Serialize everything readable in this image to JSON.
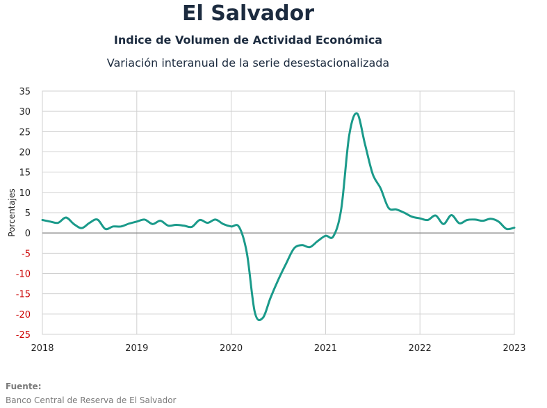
{
  "header": {
    "title": "El Salvador",
    "subtitle": "Indice de Volumen de  Actividad Económica",
    "subtitle2": "Variación interanual de la serie desestacionalizada"
  },
  "source": {
    "label": "Fuente:",
    "text": "Banco Central de Reserva de El Salvador"
  },
  "chart_data": {
    "type": "line",
    "ylabel": "Porcentajes",
    "xlabel": "",
    "xlim": [
      2018.0,
      2023.0
    ],
    "ylim": [
      -25,
      35
    ],
    "yticks": [
      35,
      30,
      25,
      20,
      15,
      10,
      5,
      0,
      -5,
      -10,
      -15,
      -20,
      -25
    ],
    "xticks": [
      "2018",
      "2019",
      "2020",
      "2021",
      "2022",
      "2023"
    ],
    "grid": true,
    "negative_tick_color": "#cc0000",
    "series": [
      {
        "color": "#1a9a8a",
        "x": [
          "2018-01",
          "2018-02",
          "2018-03",
          "2018-04",
          "2018-05",
          "2018-06",
          "2018-07",
          "2018-08",
          "2018-09",
          "2018-10",
          "2018-11",
          "2018-12",
          "2019-01",
          "2019-02",
          "2019-03",
          "2019-04",
          "2019-05",
          "2019-06",
          "2019-07",
          "2019-08",
          "2019-09",
          "2019-10",
          "2019-11",
          "2019-12",
          "2020-01",
          "2020-02",
          "2020-03",
          "2020-04",
          "2020-05",
          "2020-06",
          "2020-07",
          "2020-08",
          "2020-09",
          "2020-10",
          "2020-11",
          "2020-12",
          "2021-01",
          "2021-02",
          "2021-03",
          "2021-04",
          "2021-05",
          "2021-06",
          "2021-07",
          "2021-08",
          "2021-09",
          "2021-10",
          "2021-11",
          "2021-12",
          "2022-01",
          "2022-02",
          "2022-03",
          "2022-04",
          "2022-05",
          "2022-06",
          "2022-07",
          "2022-08",
          "2022-09",
          "2022-10",
          "2022-11",
          "2022-12",
          "2023-01"
        ],
        "values": [
          3.2,
          2.8,
          2.5,
          3.8,
          2.2,
          1.2,
          2.5,
          3.3,
          1.0,
          1.6,
          1.6,
          2.3,
          2.8,
          3.3,
          2.2,
          3.0,
          1.8,
          2.0,
          1.8,
          1.5,
          3.2,
          2.5,
          3.3,
          2.2,
          1.6,
          1.5,
          -5.0,
          -19.5,
          -21.0,
          -16.0,
          -11.5,
          -7.5,
          -3.8,
          -3.0,
          -3.5,
          -2.0,
          -0.7,
          -0.8,
          6.0,
          24.0,
          29.5,
          22.0,
          14.5,
          11.0,
          6.2,
          5.8,
          5.0,
          4.0,
          3.6,
          3.2,
          4.3,
          2.2,
          4.4,
          2.4,
          3.2,
          3.3,
          3.0,
          3.5,
          2.8,
          1.0,
          1.3
        ]
      }
    ]
  }
}
